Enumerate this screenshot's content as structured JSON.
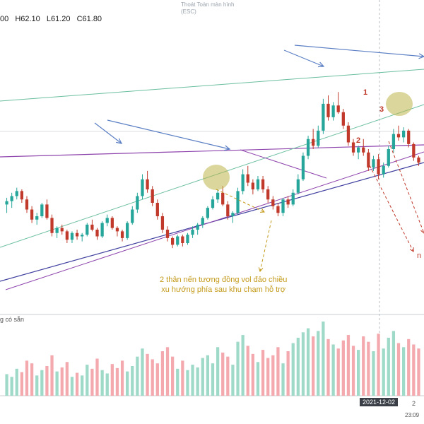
{
  "window": {
    "exit_fullscreen_line1": "Thoát Toàn màn hình",
    "exit_fullscreen_line2": "(ESC)"
  },
  "ohlc": {
    "open_partial": "00",
    "high": "H62.10",
    "low": "L61.20",
    "close": "C61.80"
  },
  "volume_label": "g có sẵn",
  "x_axis": {
    "highlight_date": "2021-12-02",
    "next_partial": "2",
    "time_partial": "23:09"
  },
  "annotation": {
    "line1": "2 thân nến tương đồng vol đảo chiều",
    "line2": "xu hướng phía sau khu chạm hỗ trợ"
  },
  "labels": {
    "wave1": "1",
    "wave2": "2",
    "wave3": "3",
    "edge_text": "n"
  },
  "colors": {
    "up": "#26a69a",
    "down": "#c0392b",
    "vol_up": "#9fd9c8",
    "vol_down": "#f3a9ae",
    "trend_purple": "#8e44ad",
    "trend_teal": "#6bbf9f",
    "trend_navy": "#3f3f9f",
    "arrow_blue": "#5b7fc4",
    "highlight": "#bdb54a",
    "annotation": "#c49a1a"
  },
  "chart_data": {
    "type": "candlestick",
    "note_units": "price",
    "candles": [
      [
        59.5,
        59.9,
        59.0,
        59.7
      ],
      [
        59.7,
        60.2,
        59.3,
        60.0
      ],
      [
        60.0,
        60.5,
        59.8,
        60.3
      ],
      [
        60.3,
        60.4,
        59.6,
        59.8
      ],
      [
        59.8,
        60.0,
        59.0,
        59.2
      ],
      [
        59.2,
        59.4,
        58.4,
        58.6
      ],
      [
        58.6,
        59.0,
        58.3,
        58.8
      ],
      [
        58.8,
        59.6,
        58.7,
        59.5
      ],
      [
        59.5,
        59.8,
        58.6,
        58.7
      ],
      [
        58.7,
        58.9,
        57.6,
        57.8
      ],
      [
        57.8,
        58.2,
        57.5,
        58.1
      ],
      [
        58.1,
        58.3,
        57.7,
        57.9
      ],
      [
        57.9,
        58.0,
        57.2,
        57.4
      ],
      [
        57.4,
        57.9,
        57.2,
        57.8
      ],
      [
        57.8,
        58.0,
        57.4,
        57.6
      ],
      [
        57.6,
        57.8,
        57.3,
        57.7
      ],
      [
        57.7,
        58.4,
        57.6,
        58.3
      ],
      [
        58.3,
        58.6,
        57.9,
        58.0
      ],
      [
        58.0,
        58.1,
        57.4,
        57.6
      ],
      [
        57.6,
        58.5,
        57.5,
        58.4
      ],
      [
        58.4,
        58.9,
        58.2,
        58.7
      ],
      [
        58.7,
        58.8,
        58.0,
        58.1
      ],
      [
        58.1,
        58.2,
        57.6,
        57.9
      ],
      [
        57.9,
        58.0,
        57.3,
        57.5
      ],
      [
        57.5,
        58.5,
        57.4,
        58.4
      ],
      [
        58.4,
        59.4,
        58.3,
        59.2
      ],
      [
        59.2,
        60.2,
        59.0,
        60.0
      ],
      [
        60.0,
        61.3,
        59.8,
        61.0
      ],
      [
        61.0,
        61.5,
        60.2,
        60.4
      ],
      [
        60.4,
        60.6,
        59.4,
        59.6
      ],
      [
        59.6,
        59.8,
        58.6,
        58.8
      ],
      [
        58.8,
        59.0,
        57.8,
        58.0
      ],
      [
        58.0,
        58.2,
        57.3,
        57.5
      ],
      [
        57.5,
        57.6,
        56.9,
        57.1
      ],
      [
        57.1,
        57.7,
        57.0,
        57.6
      ],
      [
        57.6,
        57.7,
        57.0,
        57.2
      ],
      [
        57.2,
        57.8,
        57.1,
        57.7
      ],
      [
        57.7,
        58.2,
        57.5,
        58.0
      ],
      [
        58.0,
        58.4,
        57.7,
        58.3
      ],
      [
        58.3,
        58.8,
        58.1,
        58.7
      ],
      [
        58.7,
        59.4,
        58.6,
        59.3
      ],
      [
        59.3,
        60.0,
        59.2,
        59.8
      ],
      [
        59.8,
        60.4,
        59.6,
        60.2
      ],
      [
        60.2,
        60.6,
        59.4,
        59.5
      ],
      [
        59.5,
        59.7,
        58.6,
        58.8
      ],
      [
        58.8,
        59.1,
        58.4,
        59.0
      ],
      [
        59.0,
        60.5,
        58.9,
        60.3
      ],
      [
        60.3,
        61.6,
        60.1,
        61.3
      ],
      [
        61.3,
        61.8,
        60.6,
        60.8
      ],
      [
        60.8,
        61.0,
        60.1,
        60.4
      ],
      [
        60.4,
        61.2,
        60.3,
        61.0
      ],
      [
        61.0,
        61.2,
        60.2,
        60.4
      ],
      [
        60.4,
        60.6,
        59.6,
        59.8
      ],
      [
        59.8,
        60.0,
        59.2,
        59.4
      ],
      [
        59.4,
        59.6,
        58.8,
        59.0
      ],
      [
        59.0,
        59.9,
        58.8,
        59.8
      ],
      [
        59.8,
        60.0,
        59.3,
        59.5
      ],
      [
        59.5,
        60.4,
        59.4,
        60.2
      ],
      [
        60.2,
        61.3,
        60.1,
        61.0
      ],
      [
        61.0,
        62.6,
        60.9,
        62.4
      ],
      [
        62.4,
        63.6,
        62.2,
        63.4
      ],
      [
        63.4,
        64.0,
        62.8,
        63.0
      ],
      [
        63.0,
        64.2,
        62.9,
        63.9
      ],
      [
        63.9,
        65.8,
        63.7,
        65.5
      ],
      [
        65.5,
        66.0,
        64.5,
        64.7
      ],
      [
        64.7,
        65.6,
        64.5,
        65.4
      ],
      [
        65.4,
        66.2,
        64.9,
        65.0
      ],
      [
        65.0,
        65.2,
        64.0,
        64.2
      ],
      [
        64.2,
        64.4,
        63.0,
        63.2
      ],
      [
        63.2,
        63.4,
        62.4,
        62.6
      ],
      [
        62.6,
        63.0,
        62.2,
        62.9
      ],
      [
        62.9,
        63.4,
        62.4,
        62.6
      ],
      [
        62.6,
        62.8,
        61.5,
        61.7
      ],
      [
        61.7,
        62.4,
        61.5,
        62.2
      ],
      [
        62.2,
        62.5,
        61.0,
        61.3
      ],
      [
        61.3,
        62.0,
        61.1,
        61.8
      ],
      [
        61.8,
        63.0,
        61.7,
        62.8
      ],
      [
        62.8,
        64.0,
        62.6,
        63.7
      ],
      [
        63.7,
        64.2,
        63.3,
        63.5
      ],
      [
        63.5,
        64.1,
        63.2,
        63.9
      ],
      [
        63.9,
        64.0,
        62.9,
        63.1
      ],
      [
        63.1,
        63.2,
        62.1,
        62.3
      ],
      [
        62.3,
        62.4,
        61.8,
        62.0
      ]
    ],
    "volume_up": [
      true,
      true,
      true,
      false,
      false,
      false,
      true,
      true,
      false,
      false,
      true,
      false,
      false,
      true,
      false,
      true,
      true,
      false,
      false,
      true,
      true,
      false,
      false,
      false,
      true,
      true,
      true,
      true,
      false,
      false,
      false,
      false,
      false,
      false,
      true,
      false,
      true,
      true,
      true,
      true,
      true,
      true,
      true,
      false,
      false,
      true,
      true,
      true,
      false,
      false,
      true,
      false,
      false,
      false,
      false,
      true,
      false,
      true,
      true,
      true,
      true,
      false,
      true,
      true,
      false,
      true,
      false,
      false,
      false,
      false,
      true,
      false,
      false,
      true,
      false,
      true,
      true,
      true,
      false,
      true,
      false,
      false,
      false
    ],
    "volume": [
      32,
      28,
      40,
      35,
      52,
      48,
      30,
      38,
      44,
      60,
      36,
      42,
      50,
      28,
      34,
      30,
      46,
      40,
      55,
      38,
      33,
      47,
      41,
      52,
      36,
      44,
      58,
      70,
      62,
      54,
      48,
      66,
      72,
      58,
      40,
      52,
      38,
      46,
      42,
      56,
      60,
      48,
      72,
      64,
      58,
      46,
      80,
      90,
      74,
      62,
      50,
      68,
      56,
      60,
      72,
      48,
      66,
      78,
      86,
      94,
      100,
      88,
      96,
      110,
      84,
      76,
      70,
      82,
      90,
      74,
      68,
      88,
      80,
      66,
      92,
      70,
      86,
      96,
      78,
      72,
      84,
      76,
      70
    ],
    "price_range": [
      54.0,
      70.0
    ]
  }
}
